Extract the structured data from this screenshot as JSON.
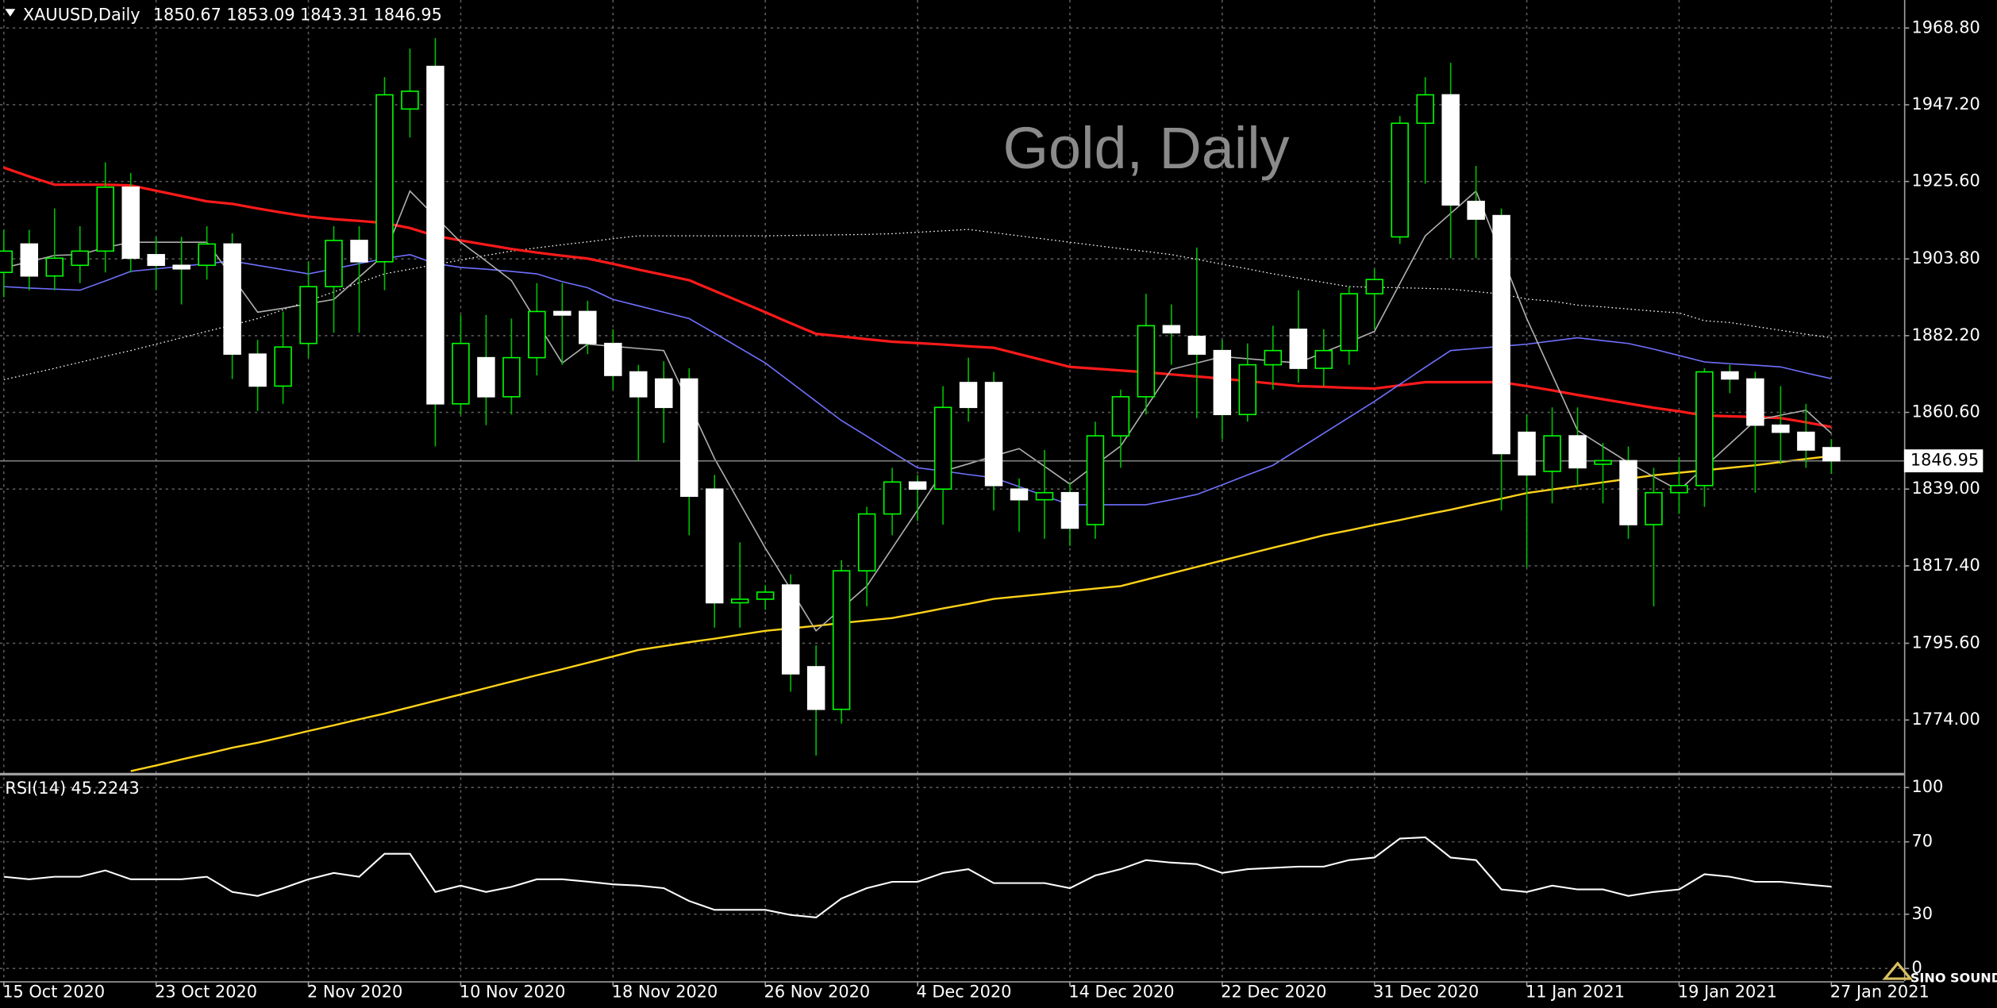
{
  "chart_data": {
    "type": "candlestick",
    "title": "XAUUSD,Daily",
    "watermark": "Gold, Daily",
    "logo": "SINO SOUND",
    "up_color": "#00ff00",
    "down_color": "#ffffff",
    "wick_color": "#00c000",
    "price_line_color": "#808080",
    "categories": [
      "15 Oct 2020",
      null,
      null,
      null,
      null,
      null,
      "23 Oct 2020",
      null,
      null,
      null,
      null,
      null,
      "2 Nov 2020",
      null,
      null,
      null,
      null,
      null,
      "10 Nov 2020",
      null,
      null,
      null,
      null,
      null,
      "18 Nov 2020",
      null,
      null,
      null,
      null,
      null,
      "26 Nov 2020",
      null,
      null,
      null,
      null,
      null,
      "4 Dec 2020",
      null,
      null,
      null,
      null,
      null,
      "14 Dec 2020",
      null,
      null,
      null,
      null,
      null,
      "22 Dec 2020",
      null,
      null,
      null,
      null,
      null,
      "31 Dec 2020",
      null,
      null,
      null,
      null,
      null,
      "11 Jan 2021",
      null,
      null,
      null,
      null,
      null,
      "19 Jan 2021",
      null,
      null,
      null,
      null,
      null,
      "27 Jan 2021"
    ],
    "open": [
      1900,
      1908,
      1899,
      1902,
      1906,
      1924,
      1905,
      1902,
      1902,
      1908,
      1877,
      1868,
      1880,
      1896,
      1909,
      1903,
      1946,
      1958,
      1863,
      1876,
      1865,
      1876,
      1889,
      1889,
      1880,
      1872,
      1870,
      1870,
      1839,
      1807,
      1808,
      1812,
      1789,
      1777,
      1816,
      1832,
      1841,
      1839,
      1869,
      1869,
      1839,
      1836,
      1838,
      1829,
      1854,
      1865,
      1885,
      1882,
      1878,
      1860,
      1874,
      1884,
      1873,
      1878,
      1894,
      1910,
      1942,
      1950,
      1920,
      1916,
      1855,
      1844,
      1854,
      1846,
      1847,
      1829,
      1838,
      1840,
      1872,
      1870,
      1857,
      1855,
      1850.67
    ],
    "high": [
      1912,
      1912,
      1918,
      1913,
      1931,
      1928,
      1910,
      1910,
      1913,
      1911,
      1881,
      1889,
      1903,
      1913,
      1913,
      1955,
      1963,
      1966,
      1888,
      1888,
      1887,
      1897,
      1897,
      1892,
      1884,
      1874,
      1875,
      1873,
      1843,
      1824,
      1812,
      1815,
      1795,
      1819,
      1834,
      1845,
      1843,
      1868,
      1876,
      1872,
      1842,
      1850,
      1841,
      1858,
      1867,
      1894,
      1891,
      1907,
      1881,
      1880,
      1885,
      1895,
      1884,
      1896,
      1901,
      1944,
      1955,
      1959,
      1930,
      1918,
      1860,
      1862,
      1862,
      1852,
      1851,
      1845,
      1848,
      1873,
      1874,
      1872,
      1868,
      1863,
      1853.09
    ],
    "low": [
      1893,
      1895,
      1895,
      1897,
      1900,
      1900,
      1895,
      1891,
      1898,
      1870,
      1861,
      1863,
      1876,
      1883,
      1883,
      1895,
      1938,
      1851,
      1860,
      1857,
      1860,
      1871,
      1874,
      1877,
      1867,
      1847,
      1852,
      1826,
      1800,
      1800,
      1805,
      1782,
      1764,
      1773,
      1806,
      1826,
      1830,
      1829,
      1858,
      1833,
      1827,
      1825,
      1823,
      1825,
      1845,
      1860,
      1874,
      1859,
      1853,
      1858,
      1867,
      1869,
      1868,
      1874,
      1884,
      1908,
      1925,
      1904,
      1904,
      1833,
      1817,
      1835,
      1840,
      1835,
      1825,
      1806,
      1832,
      1834,
      1866,
      1838,
      1846,
      1845,
      1843.31
    ],
    "close": [
      1906,
      1899,
      1904,
      1906,
      1924,
      1904,
      1902,
      1901,
      1908,
      1877,
      1868,
      1879,
      1896,
      1909,
      1903,
      1950,
      1951,
      1863,
      1880,
      1865,
      1876,
      1889,
      1888,
      1880,
      1871,
      1865,
      1862,
      1837,
      1807,
      1808,
      1810,
      1787,
      1777,
      1816,
      1832,
      1841,
      1839,
      1862,
      1862,
      1840,
      1836,
      1838,
      1828,
      1854,
      1865,
      1885,
      1883,
      1877,
      1860,
      1874,
      1878,
      1873,
      1878,
      1894,
      1898,
      1942,
      1950,
      1919,
      1915,
      1849,
      1843,
      1854,
      1845,
      1847,
      1829,
      1838,
      1840,
      1872,
      1870,
      1857,
      1855,
      1850,
      1846.95
    ],
    "series": [
      {
        "color": "#ffffff",
        "dashed": true,
        "values": [
          1869.8,
          1871.4,
          1873,
          1874.7,
          1876.4,
          1878,
          1879.8,
          1881.6,
          1883.4,
          1885.2,
          1887,
          1889.5,
          1892,
          1894.5,
          1897.1,
          1899.6,
          1900.9,
          1902.2,
          1903.5,
          1904.8,
          1906,
          1906.9,
          1907.8,
          1908.6,
          1909.5,
          1910.3,
          1910.3,
          1910.3,
          1910.3,
          1910.3,
          1910.3,
          1910.4,
          1910.5,
          1910.6,
          1910.7,
          1910.9,
          1911.3,
          1911.7,
          1912.1,
          1911.2,
          1910.3,
          1909.4,
          1908.5,
          1907.6,
          1906.7,
          1905.9,
          1905,
          1903.7,
          1902.3,
          1901,
          1899.6,
          1898.4,
          1897.2,
          1896,
          1895.8,
          1895.7,
          1895.5,
          1895.3,
          1894.6,
          1893.9,
          1892.5,
          1891.9,
          1890.8,
          1890.3,
          1889.7,
          1889.1,
          1888.6,
          1886.4,
          1885.9,
          1884.8,
          1883.7,
          1882.6,
          1881.6
        ]
      },
      {
        "color": "#ff1a1a",
        "values": [
          1929.5,
          1927,
          1924.7,
          1924.7,
          1924.7,
          1924.5,
          1923,
          1921.5,
          1920,
          1919.3,
          1918,
          1916.8,
          1915.7,
          1915,
          1914.5,
          1913.9,
          1912.5,
          1910.3,
          1909,
          1907.8,
          1906.6,
          1905.6,
          1904.7,
          1903.9,
          1902.4,
          1900.8,
          1899.3,
          1897.8,
          1894.8,
          1891.8,
          1888.8,
          1885.7,
          1882.7,
          1882,
          1881.2,
          1880.5,
          1880.1,
          1879.7,
          1879.2,
          1878.8,
          1877,
          1875.2,
          1873.4,
          1872.9,
          1872.4,
          1871.9,
          1871.3,
          1870.7,
          1870.1,
          1869.4,
          1868.7,
          1868,
          1867.8,
          1867.5,
          1867.3,
          1868.2,
          1869.1,
          1869.1,
          1869.1,
          1869.1,
          1868,
          1866.8,
          1865.5,
          1864.3,
          1863.1,
          1861.9,
          1860.9,
          1859.7,
          1859.5,
          1859.3,
          1859,
          1857.8,
          1856.5
        ]
      },
      {
        "color": "#7070ff",
        "values": [
          1896,
          1895.6,
          1895.3,
          1895,
          1897.6,
          1900.3,
          1901,
          1901.7,
          1902.5,
          1903.2,
          1902,
          1900.8,
          1899.6,
          1901,
          1902.5,
          1903.9,
          1905,
          1902.5,
          1901.4,
          1900.9,
          1900.3,
          1899.6,
          1897.4,
          1895.7,
          1892.4,
          1890.6,
          1888.8,
          1887,
          1882.9,
          1878.7,
          1874.5,
          1869.1,
          1863.7,
          1858.3,
          1853.9,
          1849.4,
          1845,
          1844.1,
          1843.1,
          1842.2,
          1839.7,
          1837.1,
          1834.6,
          1834.6,
          1834.6,
          1834.6,
          1836,
          1837.5,
          1840.2,
          1843,
          1845.7,
          1850.2,
          1854.7,
          1859.2,
          1863.7,
          1868.5,
          1873.3,
          1878,
          1878.6,
          1879.2,
          1879.8,
          1880.7,
          1881.6,
          1880.8,
          1880,
          1878.4,
          1876.6,
          1874.8,
          1874.3,
          1873.9,
          1873.4,
          1871.7,
          1870.1
        ]
      },
      {
        "color": "#ffd21a",
        "values": [
          null,
          null,
          null,
          null,
          null,
          1759.6,
          1761.2,
          1762.9,
          1764.5,
          1766.2,
          1767.6,
          1769.2,
          1770.9,
          1772.5,
          1774.2,
          1775.8,
          1777.6,
          1779.4,
          1781.2,
          1783,
          1784.8,
          1786.6,
          1788.3,
          1790.1,
          1791.9,
          1793.7,
          1794.8,
          1795.9,
          1796.9,
          1798,
          1799.1,
          1799.8,
          1800.5,
          1801.3,
          1802,
          1802.7,
          1804,
          1805.4,
          1806.7,
          1808.1,
          1808.8,
          1809.5,
          1810.3,
          1811,
          1811.7,
          1813.5,
          1815.3,
          1817.1,
          1818.9,
          1820.7,
          1822.5,
          1824.2,
          1826,
          1827.4,
          1828.9,
          1830.3,
          1831.8,
          1833.2,
          1834.8,
          1836.3,
          1837.9,
          1838.9,
          1839.9,
          1840.9,
          1841.9,
          1842.9,
          1843.6,
          1844.3,
          1845,
          1845.7,
          1846.6,
          1847.5,
          1848.3
        ]
      },
      {
        "color": "#b0b0b0",
        "values": [
          1901.3,
          1903,
          1904.8,
          1905,
          1907,
          1908.5,
          1908.5,
          1908.5,
          1908.5,
          1898.7,
          1888.8,
          1889.9,
          1891.2,
          1892.4,
          1898.7,
          1905,
          1922.9,
          1915.7,
          1908.5,
          1903.2,
          1897.7,
          1886,
          1874.5,
          1879.8,
          1879.2,
          1878.6,
          1878,
          1863,
          1847.6,
          1835,
          1822.4,
          1810.8,
          1799.1,
          1805.4,
          1811.7,
          1822.4,
          1833.1,
          1844,
          1846.1,
          1848.3,
          1850.4,
          1845.4,
          1840.4,
          1845.8,
          1851.1,
          1861.9,
          1872.7,
          1874.5,
          1876.3,
          1875.7,
          1875.1,
          1874.5,
          1877.5,
          1880.4,
          1883.4,
          1896.9,
          1910.3,
          1916.6,
          1922.9,
          1904.9,
          1887,
          1871.2,
          1855.5,
          1851,
          1846.5,
          1842.5,
          1838.6,
          1845.2,
          1851.7,
          1858.3,
          1859.8,
          1861.2,
          1854.7
        ]
      }
    ],
    "ylim": [
      1758.93,
      1976.69
    ],
    "yticks": [
      {
        "value": 1968.8,
        "label": "1968.80"
      },
      {
        "value": 1947.2,
        "label": "1947.20"
      },
      {
        "value": 1925.6,
        "label": "1925.60"
      },
      {
        "value": 1903.8,
        "label": "1903.80"
      },
      {
        "value": 1882.2,
        "label": "1882.20"
      },
      {
        "value": 1860.6,
        "label": "1860.60"
      },
      {
        "value": 1839,
        "label": "1839.00"
      },
      {
        "value": 1817.4,
        "label": "1817.40"
      },
      {
        "value": 1795.6,
        "label": "1795.60"
      },
      {
        "value": 1774,
        "label": "1774.00"
      }
    ],
    "grid": true,
    "rsi": {
      "label": "RSI(14)",
      "color": "#ffffff",
      "ylim": [
        0,
        100
      ],
      "yticks": [
        100,
        70,
        30,
        0
      ],
      "values": [
        50.7,
        49.3,
        50.7,
        50.7,
        54.2,
        49.3,
        49.3,
        49.3,
        50.7,
        42.3,
        40.1,
        44.4,
        49.3,
        52.8,
        50.7,
        63.4,
        63.4,
        42.3,
        45.8,
        42.3,
        45.1,
        49.3,
        49.3,
        48,
        46.5,
        45.8,
        44.4,
        37.3,
        32.4,
        32.4,
        32.4,
        29.6,
        28.2,
        38.7,
        44.4,
        47.9,
        47.9,
        52.8,
        54.9,
        47.2,
        47.2,
        47.2,
        44.4,
        51.4,
        54.9,
        59.9,
        58.5,
        57.7,
        52.8,
        54.9,
        55.6,
        56.3,
        56.3,
        59.9,
        61.3,
        71.8,
        72.5,
        61.3,
        59.9,
        43.7,
        42.3,
        45.8,
        43.7,
        43.7,
        40.1,
        42.3,
        43.7,
        52.1,
        50.7,
        47.9,
        47.9,
        46.5,
        45.2243
      ]
    }
  }
}
